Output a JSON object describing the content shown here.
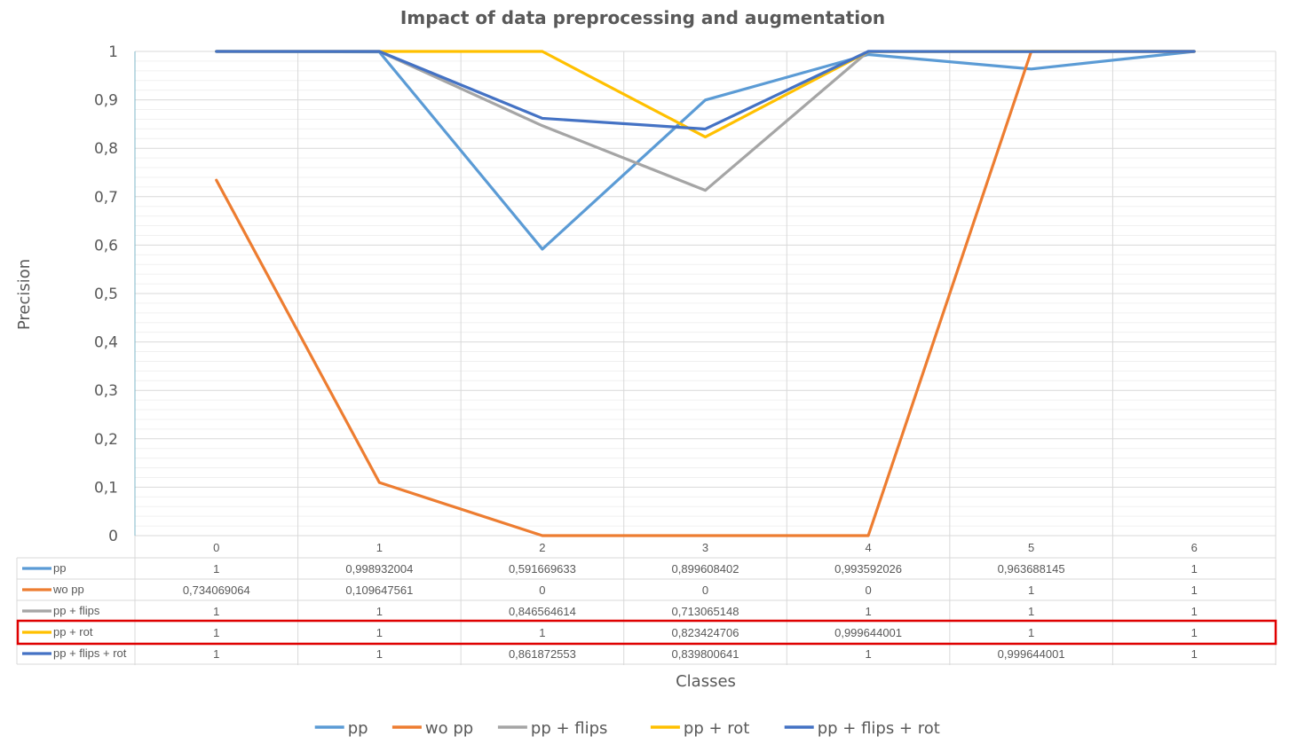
{
  "chart_data": {
    "type": "line",
    "title": "Impact of data preprocessing and augmentation",
    "xlabel": "Classes",
    "ylabel": "Precision",
    "categories": [
      "0",
      "1",
      "2",
      "3",
      "4",
      "5",
      "6"
    ],
    "ylim": [
      0,
      1
    ],
    "yticks": [
      "0",
      "0,1",
      "0,2",
      "0,3",
      "0,4",
      "0,5",
      "0,6",
      "0,7",
      "0,8",
      "0,9",
      "1"
    ],
    "grid": true,
    "legend_position": "bottom",
    "data_table": true,
    "series": [
      {
        "name": "pp",
        "color": "#5B9BD5",
        "values": [
          1,
          0.998932004,
          0.591669633,
          0.899608402,
          0.993592026,
          0.963688145,
          1
        ],
        "labels": [
          "1",
          "0,998932004",
          "0,591669633",
          "0,899608402",
          "0,993592026",
          "0,963688145",
          "1"
        ]
      },
      {
        "name": "wo pp",
        "color": "#ED7D31",
        "values": [
          0.734069064,
          0.109647561,
          0,
          0,
          0,
          1,
          1
        ],
        "labels": [
          "0,734069064",
          "0,109647561",
          "0",
          "0",
          "0",
          "1",
          "1"
        ]
      },
      {
        "name": "pp + flips",
        "color": "#A5A5A5",
        "values": [
          1,
          1,
          0.846564614,
          0.713065148,
          1,
          1,
          1
        ],
        "labels": [
          "1",
          "1",
          "0,846564614",
          "0,713065148",
          "1",
          "1",
          "1"
        ]
      },
      {
        "name": "pp + rot",
        "color": "#FFC000",
        "highlighted": true,
        "values": [
          1,
          1,
          1,
          0.823424706,
          0.999644001,
          1,
          1
        ],
        "labels": [
          "1",
          "1",
          "1",
          "0,823424706",
          "0,999644001",
          "1",
          "1"
        ]
      },
      {
        "name": "pp + flips + rot",
        "color": "#4472C4",
        "values": [
          1,
          1,
          0.861872553,
          0.839800641,
          1,
          0.999644001,
          1
        ],
        "labels": [
          "1",
          "1",
          "0,861872553",
          "0,839800641",
          "1",
          "0,999644001",
          "1"
        ]
      }
    ],
    "highlight_color": "#E00000"
  }
}
